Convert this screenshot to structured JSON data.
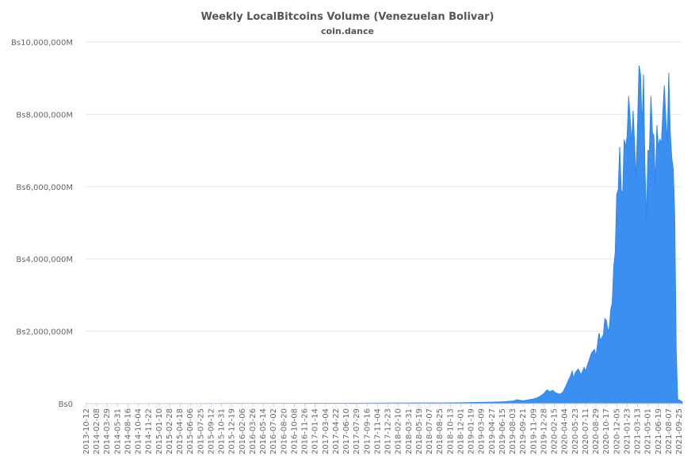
{
  "chart_data": {
    "type": "area",
    "title": "Weekly LocalBitcoins Volume (Venezuelan Bolivar)",
    "subtitle": "coin.dance",
    "xlabel": "",
    "ylabel": "",
    "ylim": [
      0,
      10000000000
    ],
    "y_ticks": [
      {
        "value": 0,
        "label": "Bs0"
      },
      {
        "value": 2000000000,
        "label": "Bs2,000,000M"
      },
      {
        "value": 4000000000,
        "label": "Bs4,000,000M"
      },
      {
        "value": 6000000000,
        "label": "Bs6,000,000M"
      },
      {
        "value": 8000000000,
        "label": "Bs8,000,000M"
      },
      {
        "value": 10000000000,
        "label": "Bs10,000,000M"
      }
    ],
    "grid": true,
    "legend": "none",
    "color": "#3a8ff0",
    "x_tick_labels": [
      "2013-10-12",
      "2014-02-08",
      "2014-03-29",
      "2014-05-31",
      "2014-08-16",
      "2014-10-04",
      "2014-11-22",
      "2015-01-10",
      "2015-02-28",
      "2015-04-18",
      "2015-06-06",
      "2015-07-25",
      "2015-09-12",
      "2015-10-31",
      "2015-12-19",
      "2016-02-06",
      "2016-03-26",
      "2016-05-14",
      "2016-07-02",
      "2016-08-20",
      "2016-10-08",
      "2016-11-26",
      "2017-01-14",
      "2017-03-04",
      "2017-04-22",
      "2017-06-10",
      "2017-07-29",
      "2017-09-16",
      "2017-11-04",
      "2017-12-23",
      "2018-02-10",
      "2018-03-31",
      "2018-05-19",
      "2018-07-07",
      "2018-08-25",
      "2018-10-13",
      "2018-12-01",
      "2019-01-19",
      "2019-03-09",
      "2019-04-27",
      "2019-06-15",
      "2019-08-03",
      "2019-09-21",
      "2019-11-09",
      "2019-12-28",
      "2020-02-15",
      "2020-04-04",
      "2020-05-23",
      "2020-07-11",
      "2020-08-29",
      "2020-10-17",
      "2020-12-05",
      "2021-01-23",
      "2021-03-13",
      "2021-05-01",
      "2021-06-19",
      "2021-08-07",
      "2021-09-25"
    ],
    "points": [
      [
        "2013-10-12",
        0
      ],
      [
        "2014-06-01",
        1000000
      ],
      [
        "2015-01-01",
        2000000
      ],
      [
        "2015-06-01",
        3000000
      ],
      [
        "2016-01-01",
        5000000
      ],
      [
        "2016-06-01",
        6000000
      ],
      [
        "2017-01-01",
        10000000
      ],
      [
        "2017-06-01",
        12000000
      ],
      [
        "2018-01-01",
        15000000
      ],
      [
        "2018-06-01",
        18000000
      ],
      [
        "2018-09-01",
        20000000
      ],
      [
        "2018-12-01",
        25000000
      ],
      [
        "2019-01-19",
        30000000
      ],
      [
        "2019-03-09",
        35000000
      ],
      [
        "2019-04-27",
        40000000
      ],
      [
        "2019-06-15",
        50000000
      ],
      [
        "2019-07-13",
        60000000
      ],
      [
        "2019-08-03",
        70000000
      ],
      [
        "2019-08-24",
        110000000
      ],
      [
        "2019-09-07",
        90000000
      ],
      [
        "2019-09-21",
        80000000
      ],
      [
        "2019-10-12",
        100000000
      ],
      [
        "2019-11-09",
        130000000
      ],
      [
        "2019-11-30",
        170000000
      ],
      [
        "2019-12-14",
        220000000
      ],
      [
        "2019-12-28",
        280000000
      ],
      [
        "2020-01-11",
        380000000
      ],
      [
        "2020-01-25",
        330000000
      ],
      [
        "2020-02-08",
        370000000
      ],
      [
        "2020-02-15",
        320000000
      ],
      [
        "2020-02-29",
        280000000
      ],
      [
        "2020-03-14",
        260000000
      ],
      [
        "2020-03-28",
        330000000
      ],
      [
        "2020-04-04",
        420000000
      ],
      [
        "2020-04-18",
        600000000
      ],
      [
        "2020-05-02",
        780000000
      ],
      [
        "2020-05-09",
        900000000
      ],
      [
        "2020-05-16",
        700000000
      ],
      [
        "2020-05-23",
        850000000
      ],
      [
        "2020-06-06",
        960000000
      ],
      [
        "2020-06-20",
        800000000
      ],
      [
        "2020-07-04",
        1000000000
      ],
      [
        "2020-07-11",
        900000000
      ],
      [
        "2020-07-25",
        1150000000
      ],
      [
        "2020-08-08",
        1400000000
      ],
      [
        "2020-08-22",
        1500000000
      ],
      [
        "2020-08-29",
        1300000000
      ],
      [
        "2020-09-12",
        1950000000
      ],
      [
        "2020-09-19",
        1750000000
      ],
      [
        "2020-10-03",
        1900000000
      ],
      [
        "2020-10-10",
        2350000000
      ],
      [
        "2020-10-17",
        2300000000
      ],
      [
        "2020-10-24",
        2000000000
      ],
      [
        "2020-10-31",
        2100000000
      ],
      [
        "2020-11-07",
        2600000000
      ],
      [
        "2020-11-14",
        2800000000
      ],
      [
        "2020-11-21",
        3800000000
      ],
      [
        "2020-11-28",
        4200000000
      ],
      [
        "2020-12-05",
        5800000000
      ],
      [
        "2020-12-12",
        5900000000
      ],
      [
        "2020-12-19",
        7100000000
      ],
      [
        "2020-12-26",
        5900000000
      ],
      [
        "2021-01-02",
        5800000000
      ],
      [
        "2021-01-09",
        7300000000
      ],
      [
        "2021-01-16",
        7100000000
      ],
      [
        "2021-01-23",
        7400000000
      ],
      [
        "2021-01-30",
        8500000000
      ],
      [
        "2021-02-06",
        7900000000
      ],
      [
        "2021-02-13",
        7200000000
      ],
      [
        "2021-02-20",
        8100000000
      ],
      [
        "2021-02-27",
        7200000000
      ],
      [
        "2021-03-06",
        6200000000
      ],
      [
        "2021-03-13",
        7700000000
      ],
      [
        "2021-03-20",
        9350000000
      ],
      [
        "2021-03-27",
        9100000000
      ],
      [
        "2021-04-03",
        7600000000
      ],
      [
        "2021-04-10",
        9100000000
      ],
      [
        "2021-04-17",
        6500000000
      ],
      [
        "2021-04-24",
        5100000000
      ],
      [
        "2021-05-01",
        7000000000
      ],
      [
        "2021-05-08",
        7000000000
      ],
      [
        "2021-05-15",
        8500000000
      ],
      [
        "2021-05-22",
        7500000000
      ],
      [
        "2021-05-29",
        7400000000
      ],
      [
        "2021-06-05",
        6000000000
      ],
      [
        "2021-06-12",
        7700000000
      ],
      [
        "2021-06-19",
        7100000000
      ],
      [
        "2021-06-26",
        7300000000
      ],
      [
        "2021-07-03",
        7200000000
      ],
      [
        "2021-07-10",
        8000000000
      ],
      [
        "2021-07-17",
        8800000000
      ],
      [
        "2021-07-24",
        7900000000
      ],
      [
        "2021-07-31",
        7200000000
      ],
      [
        "2021-08-07",
        9150000000
      ],
      [
        "2021-08-14",
        7500000000
      ],
      [
        "2021-08-21",
        6800000000
      ],
      [
        "2021-08-28",
        6500000000
      ],
      [
        "2021-09-04",
        5200000000
      ],
      [
        "2021-09-11",
        1500000000
      ],
      [
        "2021-09-18",
        120000000
      ],
      [
        "2021-09-25",
        100000000
      ],
      [
        "2021-10-02",
        80000000
      ],
      [
        "2021-10-09",
        50000000
      ]
    ]
  }
}
